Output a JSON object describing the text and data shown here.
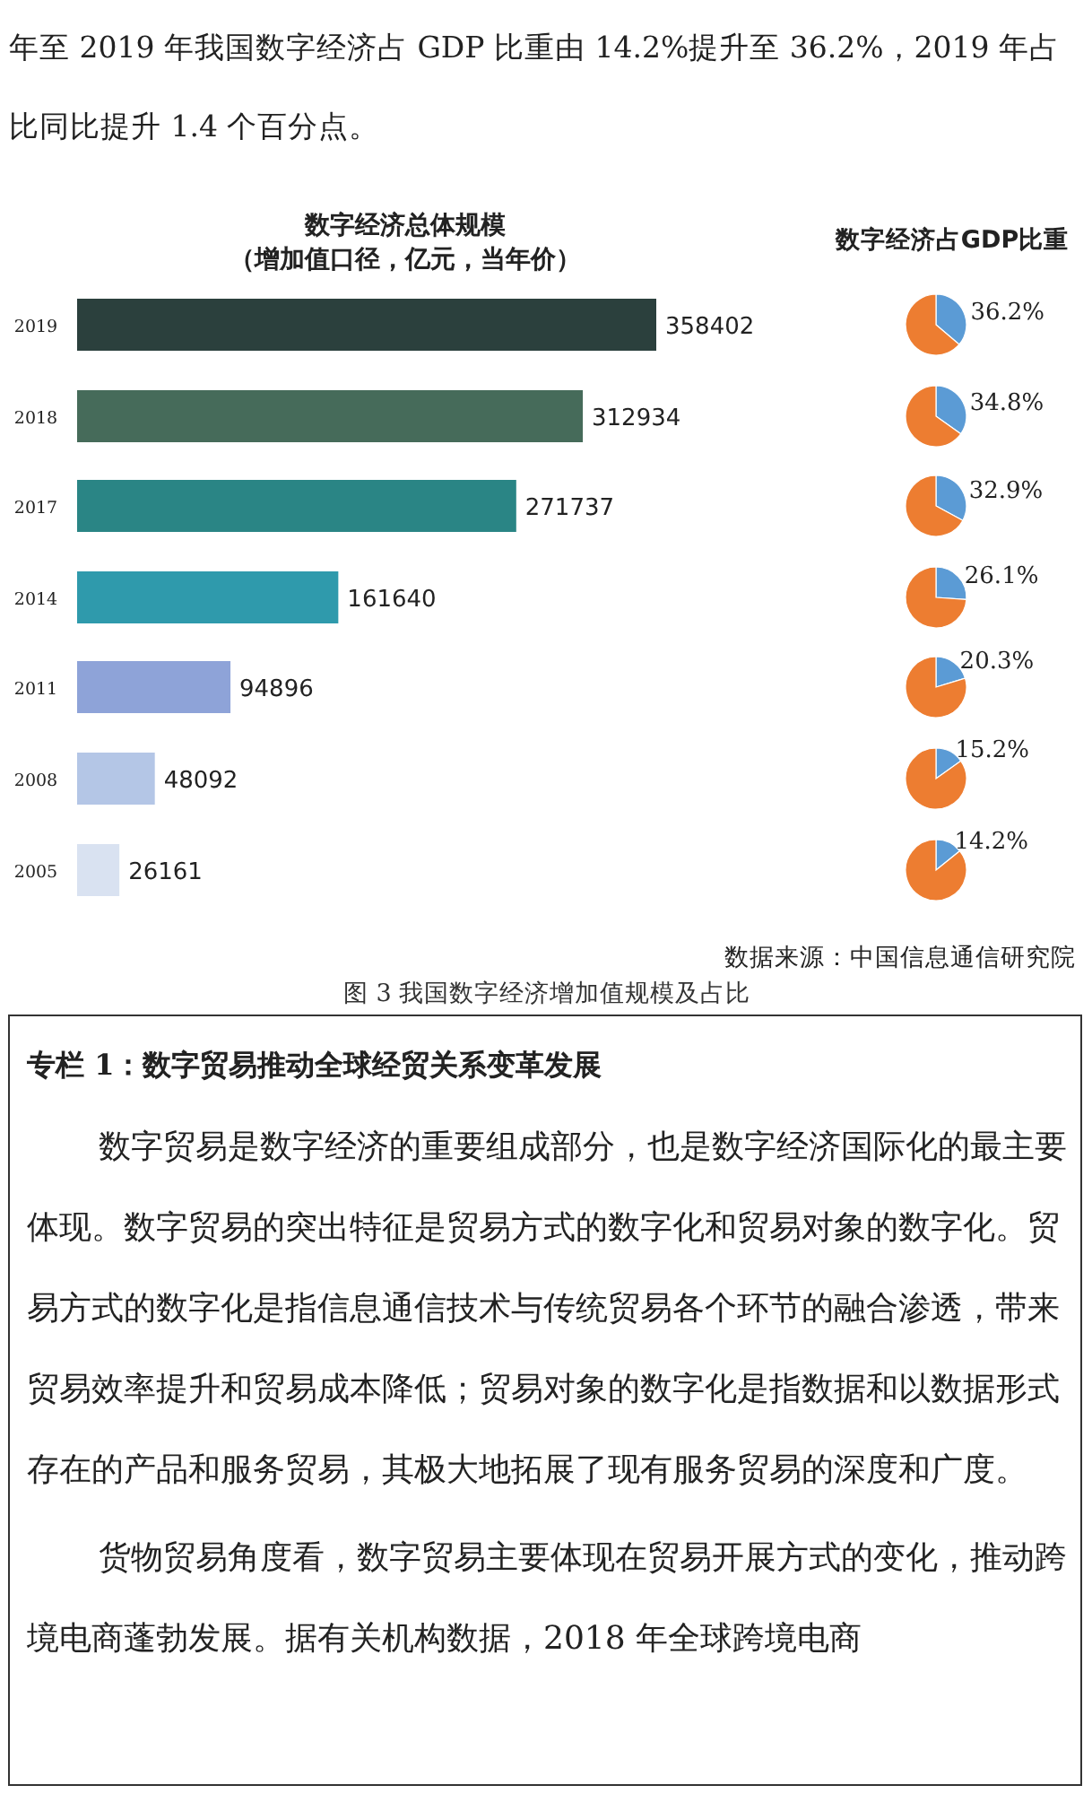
{
  "chart_data": [
    {
      "type": "bar",
      "orientation": "horizontal",
      "title": "数字经济总体规模",
      "subtitle": "（增加值口径，亿元，当年价）",
      "categories": [
        "2019",
        "2018",
        "2017",
        "2014",
        "2011",
        "2008",
        "2005"
      ],
      "values": [
        358402,
        312934,
        271737,
        161640,
        94896,
        48092,
        26161
      ],
      "colors": [
        "#2b403d",
        "#466b5a",
        "#2a8585",
        "#2f9aac",
        "#8ea3d8",
        "#b4c6e6",
        "#d9e2f1"
      ],
      "data_labels": true,
      "tick_labels": "y",
      "annotations": [
        "年至 2019 年我国数字经济占 GDP 比重由 14.2%提升至 36.2%，2019 年占比同比提升 1.4 个百分点。",
        "数据来源：中国信息通信研究院",
        "图 3 我国数字经济增加值规模及占比",
        "专栏 1：数字贸易推动全球经贸关系变革发展",
        "数字贸易是数字经济的重要组成部分，也是数字经济国际化的最主要体现。数字贸易的突出特征是贸易方式的数字化和贸易对象的数字化。贸易方式的数字化是指信息通信技术与传统贸易各个环节的融合渗透，带来贸易效率提升和贸易成本降低；贸易对象的数字化是指数据和以数据形式存在的产品和服务贸易，其极大地拓展了现有服务贸易的深度和广度。",
        "货物贸易角度看，数字贸易主要体现在贸易开展方式的变化，推动跨境电商蓬勃发展。据有关机构数据，2018 年全球跨境电商"
      ]
    },
    {
      "type": "pie",
      "title": "数字经济占GDP比重",
      "categories": [
        null,
        null
      ],
      "values": [
        36.2,
        63.8
      ],
      "colors": [
        "#5b9bd5",
        "#ed7d31"
      ],
      "value_labels": [
        "36.2%",
        null
      ]
    },
    {
      "type": "pie",
      "categories": [
        null,
        null
      ],
      "values": [
        34.8,
        65.2
      ],
      "colors": [
        "#5b9bd5",
        "#ed7d31"
      ],
      "value_labels": [
        "34.8%",
        null
      ]
    },
    {
      "type": "pie",
      "categories": [
        null,
        null
      ],
      "values": [
        32.9,
        67.1
      ],
      "colors": [
        "#5b9bd5",
        "#ed7d31"
      ],
      "value_labels": [
        "32.9%",
        null
      ]
    },
    {
      "type": "pie",
      "categories": [
        null,
        null
      ],
      "values": [
        26.1,
        73.9
      ],
      "colors": [
        "#5b9bd5",
        "#ed7d31"
      ],
      "value_labels": [
        "26.1%",
        null
      ]
    },
    {
      "type": "pie",
      "categories": [
        null,
        null
      ],
      "values": [
        20.3,
        79.7
      ],
      "colors": [
        "#5b9bd5",
        "#ed7d31"
      ],
      "value_labels": [
        "20.3%",
        null
      ]
    },
    {
      "type": "pie",
      "categories": [
        null,
        null
      ],
      "values": [
        15.2,
        84.8
      ],
      "colors": [
        "#5b9bd5",
        "#ed7d31"
      ],
      "value_labels": [
        "15.2%",
        null
      ]
    },
    {
      "type": "pie",
      "categories": [
        null,
        null
      ],
      "values": [
        14.2,
        85.8
      ],
      "colors": [
        "#5b9bd5",
        "#ed7d31"
      ],
      "value_labels": [
        "14.2%",
        null
      ]
    }
  ]
}
